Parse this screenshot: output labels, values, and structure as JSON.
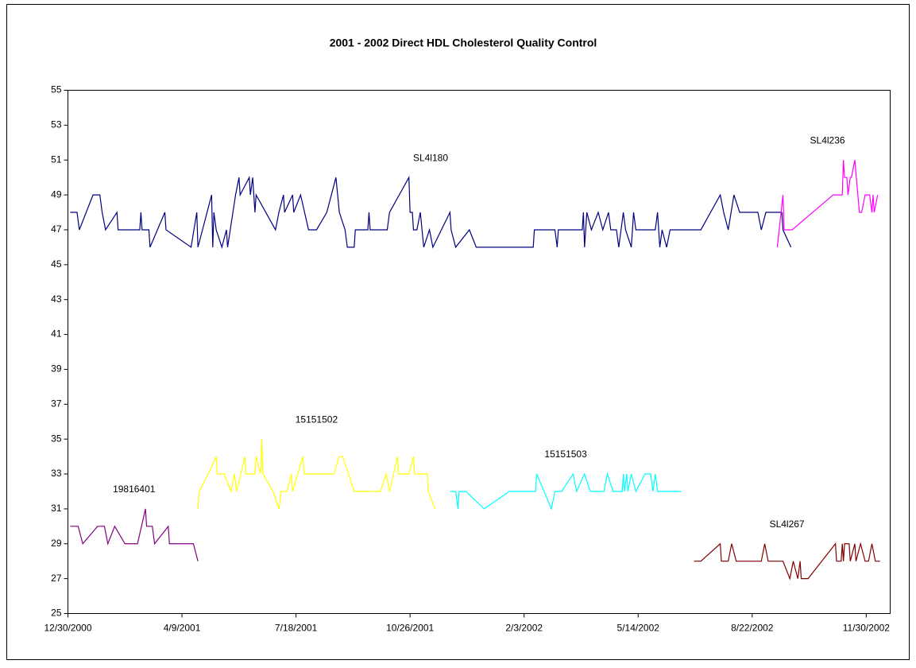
{
  "chart_data": {
    "type": "line",
    "title": "2001 - 2002 Direct HDL Cholesterol Quality Control",
    "xlim": [
      "12/30/2000",
      "12/21/2002"
    ],
    "xticks": [
      "12/30/2000",
      "4/9/2001",
      "7/18/2001",
      "10/26/2001",
      "2/3/2002",
      "5/14/2002",
      "8/22/2002",
      "11/30/2002"
    ],
    "ylim": [
      25,
      55
    ],
    "yticks": [
      25,
      27,
      29,
      31,
      33,
      35,
      37,
      39,
      41,
      43,
      45,
      47,
      49,
      51,
      53,
      55
    ],
    "grid": false,
    "series": [
      {
        "name": "19816401",
        "color": "#800080",
        "x": [
          "1/1/2001",
          "1/8/2001",
          "1/12/2001",
          "1/25/2001",
          "1/31/2001",
          "2/3/2001",
          "2/9/2001",
          "2/18/2001",
          "3/1/2001",
          "3/8/2001",
          "3/9/2001",
          "3/14/2001",
          "3/16/2001",
          "3/28/2001",
          "3/29/2001",
          "4/19/2001",
          "4/23/2001"
        ],
        "values": [
          30,
          30,
          29,
          30,
          30,
          29,
          30,
          29,
          29,
          31,
          30,
          30,
          29,
          30,
          29,
          29,
          28
        ]
      },
      {
        "name": "15151502",
        "color": "#ffff00",
        "x": [
          "4/23/2001",
          "4/24/2001",
          "5/2/2001",
          "5/9/2001",
          "5/10/2001",
          "5/16/2001",
          "5/22/2001",
          "5/25/2001",
          "5/27/2001",
          "6/3/2001",
          "6/4/2001",
          "6/12/2001",
          "6/13/2001",
          "6/17/2001",
          "6/18/2001",
          "6/19/2001",
          "6/28/2001",
          "7/3/2001",
          "7/5/2001",
          "7/10/2001",
          "7/14/2001",
          "7/15/2001",
          "7/24/2001",
          "7/25/2001",
          "8/20/2001",
          "8/25/2001",
          "8/28/2001",
          "9/7/2001",
          "9/30/2001",
          "10/5/2001",
          "10/8/2001",
          "10/15/2001",
          "10/16/2001",
          "10/25/2001",
          "10/29/2001",
          "10/30/2001",
          "11/10/2001",
          "11/11/2001",
          "11/17/2001"
        ],
        "values": [
          31,
          32,
          33,
          34,
          33,
          33,
          32,
          33,
          32,
          34,
          33,
          33,
          34,
          33,
          35,
          33,
          32,
          31,
          32,
          32,
          33,
          32,
          34,
          33,
          33,
          34,
          34,
          32,
          32,
          33,
          32,
          34,
          33,
          33,
          34,
          33,
          33,
          32,
          31
        ]
      },
      {
        "name": "15151503",
        "color": "#00ffff",
        "x": [
          "11/30/2001",
          "12/5/2001",
          "12/7/2001",
          "12/8/2001",
          "12/14/2001",
          "12/30/2001",
          "1/21/2002",
          "2/13/2002",
          "2/14/2002",
          "2/27/2002",
          "3/2/2002",
          "3/8/2002",
          "3/18/2002",
          "3/21/2002",
          "3/28/2002",
          "4/2/2002",
          "4/14/2002",
          "4/17/2002",
          "4/22/2002",
          "4/30/2002",
          "5/1/2002",
          "5/2/2002",
          "5/4/2002",
          "5/5/2002",
          "5/8/2002",
          "5/12/2002",
          "5/20/2002",
          "5/25/2002",
          "5/27/2002",
          "5/29/2002",
          "5/31/2002",
          "6/21/2002"
        ],
        "values": [
          32,
          32,
          31,
          32,
          32,
          31,
          32,
          32,
          33,
          31,
          32,
          32,
          33,
          32,
          33,
          32,
          32,
          33,
          32,
          32,
          33,
          32,
          33,
          32,
          33,
          32,
          33,
          33,
          32,
          33,
          32,
          32
        ]
      },
      {
        "name": "SL4l180",
        "color": "#000080",
        "x": [
          "1/1/2001",
          "1/7/2001",
          "1/9/2001",
          "1/21/2001",
          "1/27/2001",
          "1/29/2001",
          "2/1/2001",
          "2/11/2001",
          "2/12/2001",
          "3/3/2001",
          "3/4/2001",
          "3/5/2001",
          "3/11/2001",
          "3/12/2001",
          "3/25/2001",
          "3/26/2001",
          "4/17/2001",
          "4/22/2001",
          "4/23/2001",
          "5/5/2001",
          "5/6/2001",
          "5/7/2001",
          "5/9/2001",
          "5/14/2001",
          "5/18/2001",
          "5/19/2001",
          "5/26/2001",
          "5/29/2001",
          "5/30/2001",
          "6/7/2001",
          "6/8/2001",
          "6/10/2001",
          "6/12/2001",
          "6/13/2001",
          "6/30/2001",
          "7/3/2001",
          "7/7/2001",
          "7/8/2001",
          "7/15/2001",
          "7/16/2001",
          "7/22/2001",
          "7/29/2001",
          "8/5/2001",
          "8/14/2001",
          "8/22/2001",
          "8/25/2001",
          "8/30/2001",
          "9/1/2001",
          "9/7/2001",
          "9/8/2001",
          "9/19/2001",
          "9/20/2001",
          "9/21/2001",
          "10/6/2001",
          "10/8/2001",
          "10/25/2001",
          "10/26/2001",
          "10/28/2001",
          "10/29/2001",
          "11/1/2001",
          "11/4/2001",
          "11/7/2001",
          "11/12/2001",
          "11/15/2001",
          "11/30/2001",
          "12/1/2001",
          "12/5/2001",
          "12/17/2001",
          "12/23/2001",
          "2/11/2002",
          "2/12/2002",
          "3/2/2002",
          "3/4/2002",
          "3/5/2002",
          "3/26/2002",
          "3/27/2002",
          "3/28/2002",
          "3/30/2002",
          "4/3/2002",
          "4/9/2002",
          "4/13/2002",
          "4/18/2002",
          "4/20/2002",
          "4/25/2002",
          "4/27/2002",
          "5/1/2002",
          "5/3/2002",
          "5/8/2002",
          "5/10/2002",
          "5/12/2002",
          "5/29/2002",
          "5/31/2002",
          "6/2/2002",
          "6/4/2002",
          "6/8/2002",
          "6/11/2002",
          "7/8/2002",
          "7/25/2002",
          "7/28/2002",
          "8/1/2002",
          "8/6/2002",
          "8/11/2002",
          "8/27/2002",
          "8/30/2002",
          "9/3/2002",
          "9/17/2002",
          "9/18/2002",
          "9/25/2002"
        ],
        "values": [
          48,
          48,
          47,
          49,
          49,
          48,
          47,
          48,
          47,
          47,
          48,
          47,
          47,
          46,
          48,
          47,
          46,
          48,
          46,
          49,
          46,
          48,
          47,
          46,
          47,
          46,
          49,
          50,
          49,
          50,
          49,
          50,
          48,
          49,
          47,
          48,
          49,
          48,
          49,
          48,
          49,
          47,
          47,
          48,
          50,
          48,
          47,
          46,
          46,
          47,
          47,
          48,
          47,
          47,
          48,
          50,
          48,
          48,
          47,
          47,
          48,
          46,
          47,
          46,
          48,
          47,
          46,
          47,
          46,
          46,
          47,
          47,
          46,
          47,
          47,
          48,
          46,
          48,
          47,
          48,
          47,
          48,
          47,
          47,
          46,
          48,
          47,
          46,
          48,
          47,
          47,
          48,
          46,
          47,
          46,
          47,
          47,
          49,
          48,
          47,
          49,
          48,
          48,
          47,
          48,
          48,
          47,
          46
        ]
      },
      {
        "name": "SL4l236",
        "color": "#ff00ff",
        "x": [
          "9/13/2002",
          "9/18/2002",
          "9/19/2002",
          "9/26/2002",
          "11/1/2002",
          "11/9/2002",
          "11/10/2002",
          "11/11/2002",
          "11/13/2002",
          "11/14/2002",
          "11/16/2002",
          "11/17/2002",
          "11/20/2002",
          "11/24/2002",
          "11/26/2002",
          "11/29/2002",
          "12/3/2002",
          "12/5/2002",
          "12/6/2002",
          "12/7/2002",
          "12/10/2002"
        ],
        "values": [
          46,
          49,
          47,
          47,
          49,
          49,
          51,
          50,
          50,
          49,
          50,
          50,
          51,
          48,
          48,
          49,
          49,
          48,
          49,
          48,
          49
        ]
      },
      {
        "name": "SL4l267",
        "color": "#800000",
        "x": [
          "7/2/2002",
          "7/8/2002",
          "7/25/2002",
          "7/26/2002",
          "8/1/2002",
          "8/4/2002",
          "8/8/2002",
          "8/30/2002",
          "9/2/2002",
          "9/5/2002",
          "9/18/2002",
          "9/24/2002",
          "9/27/2002",
          "10/1/2002",
          "10/3/2002",
          "10/4/2002",
          "10/10/2002",
          "11/3/2002",
          "11/4/2002",
          "11/8/2002",
          "11/9/2002",
          "11/10/2002",
          "11/11/2002",
          "11/15/2002",
          "11/16/2002",
          "11/20/2002",
          "11/21/2002",
          "11/25/2002",
          "11/29/2002",
          "12/2/2002",
          "12/5/2002",
          "12/8/2002",
          "12/12/2002"
        ],
        "values": [
          28,
          28,
          29,
          28,
          28,
          29,
          28,
          28,
          29,
          28,
          28,
          27,
          28,
          27,
          28,
          27,
          27,
          29,
          28,
          28,
          29,
          28,
          29,
          29,
          28,
          29,
          28,
          29,
          28,
          28,
          29,
          28,
          28
        ]
      }
    ]
  }
}
